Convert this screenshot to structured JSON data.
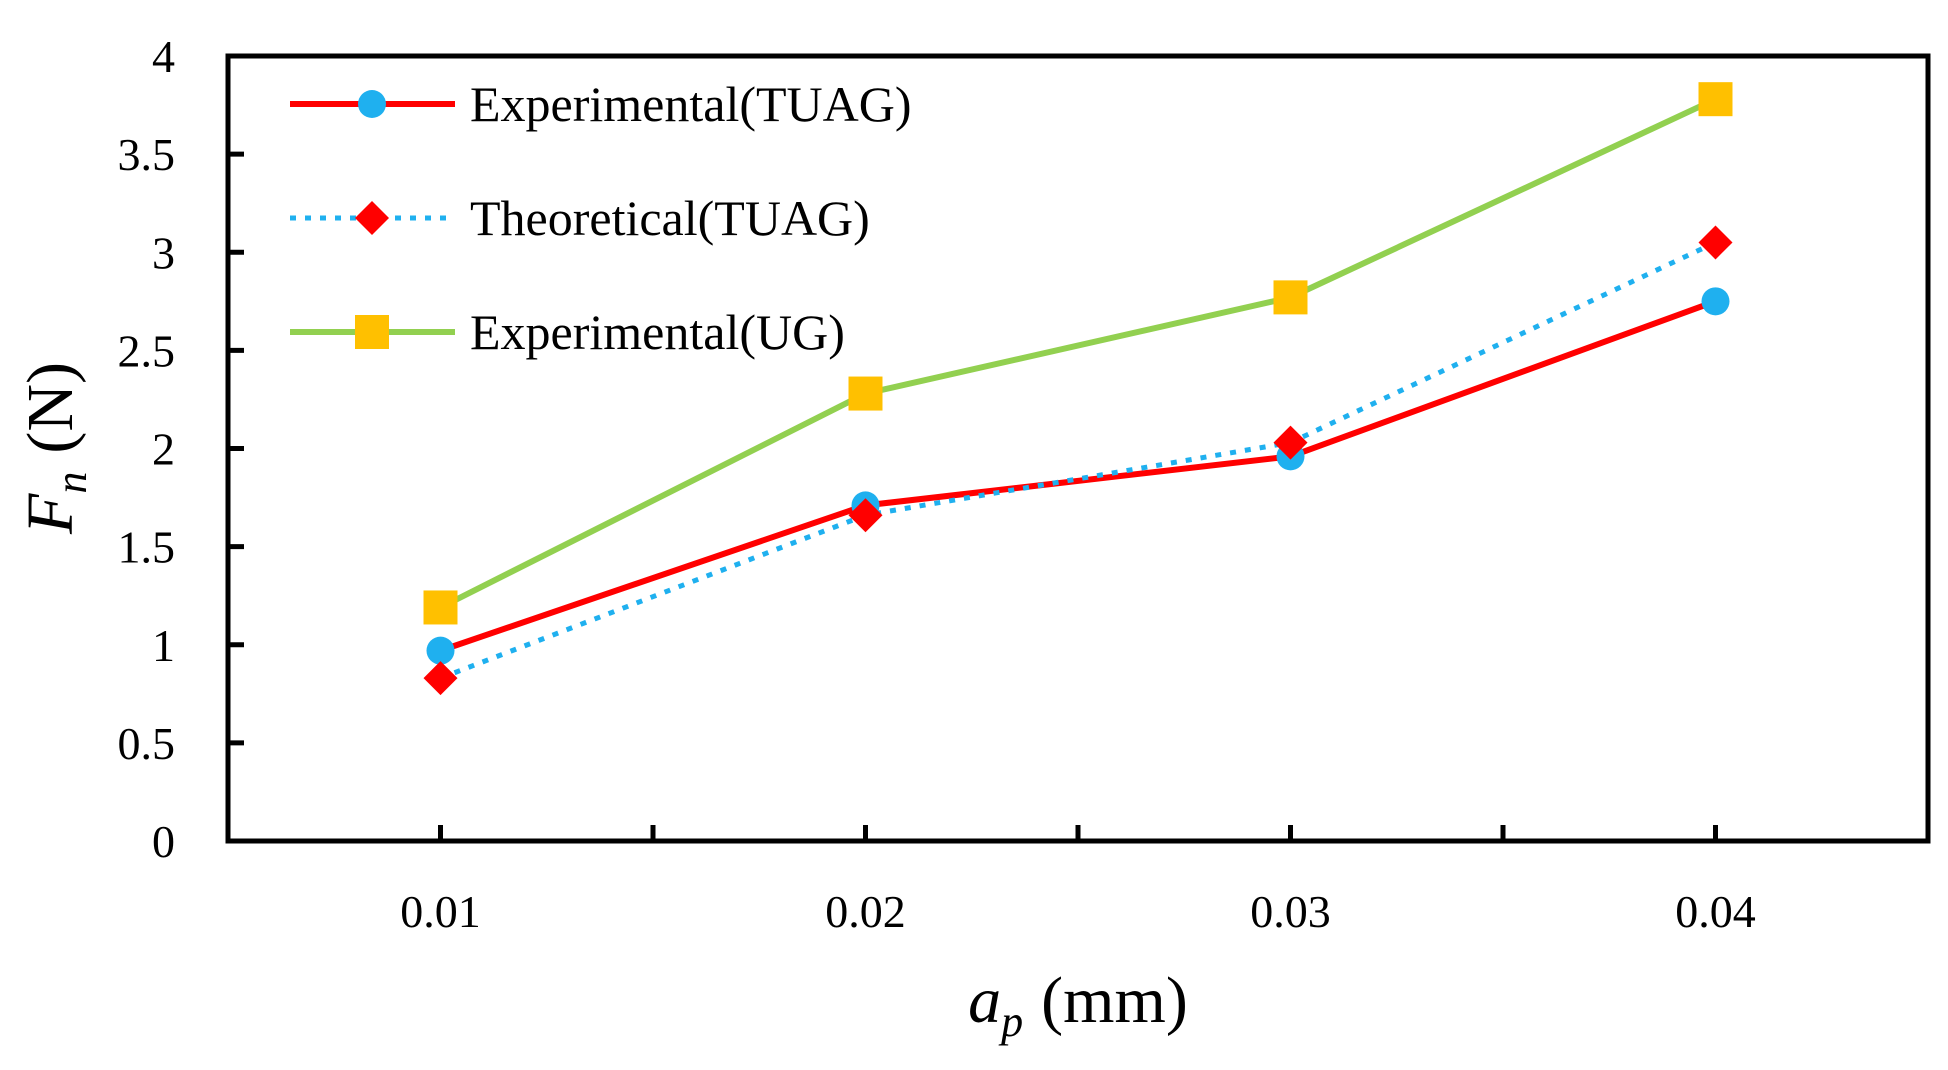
{
  "chart_data": {
    "type": "line",
    "title": "",
    "xlabel": {
      "var": "a",
      "sub": "p",
      "unit": "(mm)"
    },
    "ylabel": {
      "var": "F",
      "sub": "n",
      "unit": "(N)"
    },
    "xlim": [
      0.005,
      0.045
    ],
    "ylim": [
      0,
      4
    ],
    "x_ticks": [
      0.01,
      0.02,
      0.03,
      0.04
    ],
    "x_tick_labels": [
      "0.01",
      "0.02",
      "0.03",
      "0.04"
    ],
    "x_minor_ticks": [
      0.015,
      0.025,
      0.035
    ],
    "y_ticks": [
      0,
      0.5,
      1,
      1.5,
      2,
      2.5,
      3,
      3.5,
      4
    ],
    "y_tick_labels": [
      "0",
      "0.5",
      "1",
      "1.5",
      "2",
      "2.5",
      "3",
      "3.5",
      "4"
    ],
    "grid": false,
    "legend_position": "top-left",
    "x": [
      0.01,
      0.02,
      0.03,
      0.04
    ],
    "series": [
      {
        "name": "Experimental(TUAG)",
        "values": [
          0.97,
          1.71,
          1.96,
          2.75
        ],
        "line_color": "#ff0000",
        "line_style": "solid",
        "marker": "circle",
        "marker_color": "#1fb0ef"
      },
      {
        "name": "Theoretical(TUAG)",
        "values": [
          0.83,
          1.66,
          2.03,
          3.05
        ],
        "line_color": "#1fb0ef",
        "line_style": "dotted",
        "marker": "diamond",
        "marker_color": "#ff0000"
      },
      {
        "name": "Experimental(UG)",
        "values": [
          1.19,
          2.28,
          2.77,
          3.78
        ],
        "line_color": "#92d050",
        "line_style": "solid",
        "marker": "square",
        "marker_color": "#ffc000"
      }
    ]
  }
}
